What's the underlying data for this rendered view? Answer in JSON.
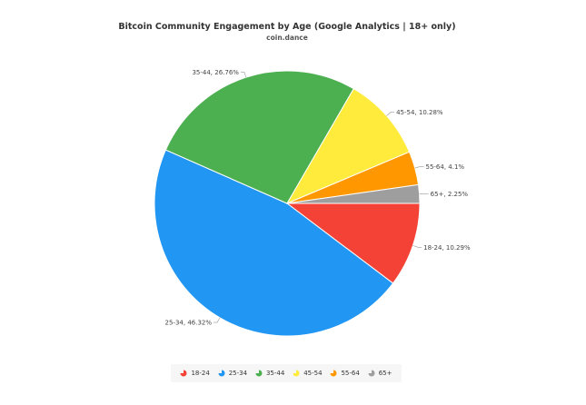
{
  "chart_data": {
    "type": "pie",
    "title": "Bitcoin Community Engagement by Age (Google Analytics | 18+ only)",
    "subtitle": "coin.dance",
    "slices": [
      {
        "label": "18-24",
        "value": 10.29,
        "data_label": "18-24, 10.29%",
        "color": "#f44336"
      },
      {
        "label": "25-34",
        "value": 46.32,
        "data_label": "25-34, 46.32%",
        "color": "#2196f3"
      },
      {
        "label": "35-44",
        "value": 26.76,
        "data_label": "35-44, 26.76%",
        "color": "#4caf50"
      },
      {
        "label": "45-54",
        "value": 10.28,
        "data_label": "45-54, 10.28%",
        "color": "#ffeb3b"
      },
      {
        "label": "55-64",
        "value": 4.1,
        "data_label": "55-64, 4.1%",
        "color": "#ff9800"
      },
      {
        "label": "65+",
        "value": 2.25,
        "data_label": "65+, 2.25%",
        "color": "#9e9e9e"
      }
    ],
    "legend_position": "bottom"
  }
}
